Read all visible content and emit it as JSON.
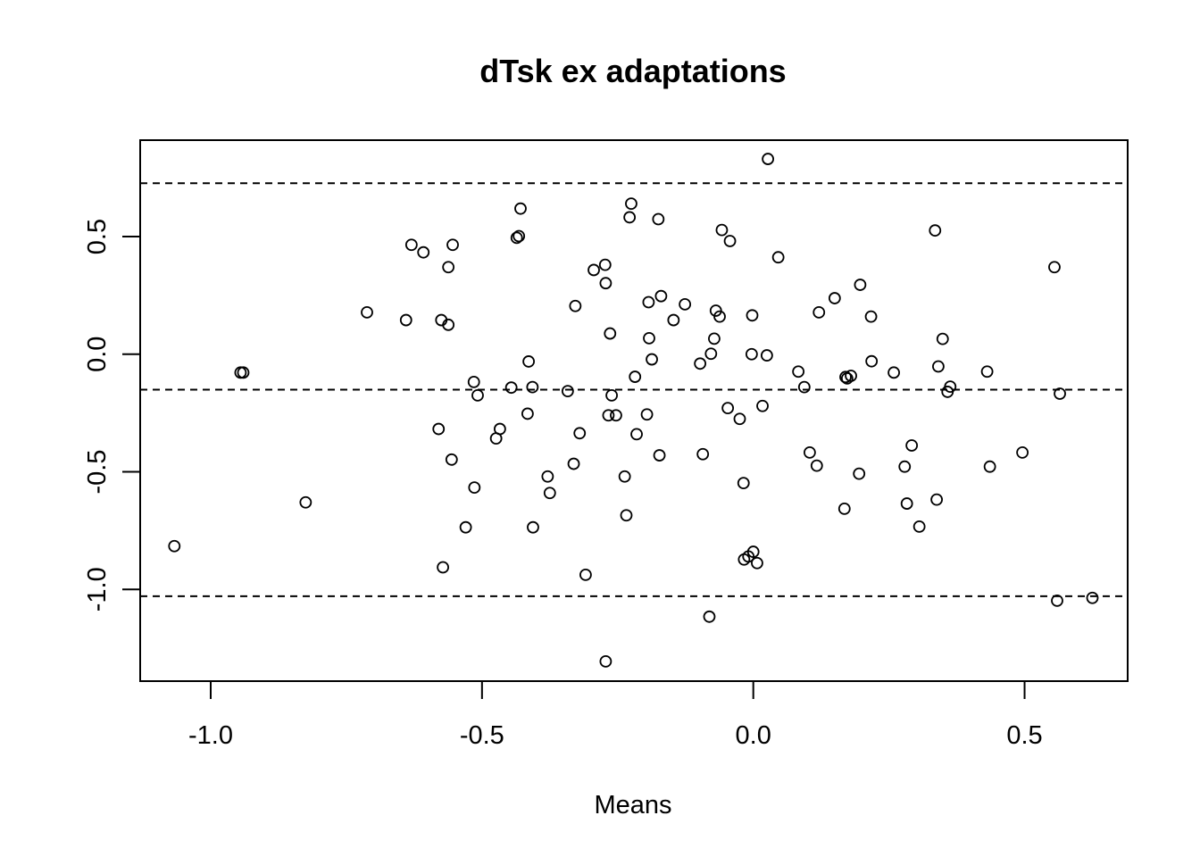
{
  "chart_data": {
    "type": "scatter",
    "title": "dTsk ex adaptations",
    "xlabel": "Means",
    "ylabel": "",
    "xlim": [
      -1.13,
      0.69
    ],
    "ylim": [
      -1.39,
      0.91
    ],
    "x_ticks": [
      -1.0,
      -0.5,
      0.0,
      0.5
    ],
    "x_tick_labels": [
      "-1.0",
      "-0.5",
      "0.0",
      "0.5"
    ],
    "y_ticks": [
      -1.0,
      -0.5,
      0.0,
      0.5
    ],
    "y_tick_labels": [
      "-1.0",
      "-0.5",
      "0.0",
      "0.5"
    ],
    "grid": false,
    "reference_lines": [
      {
        "y": 0.727,
        "style": "dashed"
      },
      {
        "y": -0.151,
        "style": "dashed"
      },
      {
        "y": -1.029,
        "style": "dashed"
      }
    ],
    "points": [
      [
        -1.067,
        -0.816
      ],
      [
        -0.945,
        -0.078
      ],
      [
        -0.94,
        -0.078
      ],
      [
        -0.825,
        -0.63
      ],
      [
        -0.712,
        0.178
      ],
      [
        -0.64,
        0.145
      ],
      [
        -0.63,
        0.465
      ],
      [
        -0.608,
        0.433
      ],
      [
        -0.58,
        -0.318
      ],
      [
        -0.575,
        0.145
      ],
      [
        -0.572,
        -0.906
      ],
      [
        -0.562,
        0.37
      ],
      [
        -0.562,
        0.125
      ],
      [
        -0.556,
        -0.448
      ],
      [
        -0.554,
        0.465
      ],
      [
        -0.53,
        -0.736
      ],
      [
        -0.515,
        -0.118
      ],
      [
        -0.514,
        -0.567
      ],
      [
        -0.508,
        -0.175
      ],
      [
        -0.474,
        -0.358
      ],
      [
        -0.467,
        -0.318
      ],
      [
        -0.446,
        -0.142
      ],
      [
        -0.436,
        0.495
      ],
      [
        -0.432,
        0.502
      ],
      [
        -0.429,
        0.619
      ],
      [
        -0.416,
        -0.253
      ],
      [
        -0.414,
        -0.031
      ],
      [
        -0.407,
        -0.14
      ],
      [
        -0.406,
        -0.736
      ],
      [
        -0.379,
        -0.52
      ],
      [
        -0.375,
        -0.59
      ],
      [
        -0.342,
        -0.157
      ],
      [
        -0.331,
        -0.466
      ],
      [
        -0.328,
        0.205
      ],
      [
        -0.32,
        -0.336
      ],
      [
        -0.309,
        -0.938
      ],
      [
        -0.294,
        0.358
      ],
      [
        -0.273,
        0.38
      ],
      [
        -0.272,
        0.302
      ],
      [
        -0.272,
        -1.306
      ],
      [
        -0.267,
        -0.26
      ],
      [
        -0.264,
        0.088
      ],
      [
        -0.261,
        -0.175
      ],
      [
        -0.253,
        -0.26
      ],
      [
        -0.237,
        -0.52
      ],
      [
        -0.234,
        -0.685
      ],
      [
        -0.228,
        0.582
      ],
      [
        -0.225,
        0.64
      ],
      [
        -0.218,
        -0.096
      ],
      [
        -0.215,
        -0.34
      ],
      [
        -0.196,
        -0.256
      ],
      [
        -0.193,
        0.221
      ],
      [
        -0.192,
        0.068
      ],
      [
        -0.187,
        -0.022
      ],
      [
        -0.175,
        0.574
      ],
      [
        -0.173,
        -0.43
      ],
      [
        -0.17,
        0.247
      ],
      [
        -0.147,
        0.145
      ],
      [
        -0.126,
        0.212
      ],
      [
        -0.098,
        -0.04
      ],
      [
        -0.093,
        -0.425
      ],
      [
        -0.081,
        -1.116
      ],
      [
        -0.078,
        0.002
      ],
      [
        -0.072,
        0.066
      ],
      [
        -0.069,
        0.185
      ],
      [
        -0.062,
        0.16
      ],
      [
        -0.058,
        0.528
      ],
      [
        -0.047,
        -0.229
      ],
      [
        -0.043,
        0.481
      ],
      [
        -0.025,
        -0.275
      ],
      [
        -0.018,
        -0.548
      ],
      [
        -0.017,
        -0.873
      ],
      [
        -0.009,
        -0.86
      ],
      [
        -0.003,
        0.0
      ],
      [
        -0.002,
        0.165
      ],
      [
        0.0,
        -0.84
      ],
      [
        0.007,
        -0.888
      ],
      [
        0.017,
        -0.22
      ],
      [
        0.025,
        -0.005
      ],
      [
        0.027,
        0.83
      ],
      [
        0.046,
        0.412
      ],
      [
        0.083,
        -0.074
      ],
      [
        0.094,
        -0.14
      ],
      [
        0.104,
        -0.418
      ],
      [
        0.117,
        -0.474
      ],
      [
        0.121,
        0.178
      ],
      [
        0.15,
        0.238
      ],
      [
        0.168,
        -0.657
      ],
      [
        0.17,
        -0.097
      ],
      [
        0.173,
        -0.103
      ],
      [
        0.18,
        -0.092
      ],
      [
        0.195,
        -0.508
      ],
      [
        0.197,
        0.295
      ],
      [
        0.217,
        0.16
      ],
      [
        0.218,
        -0.03
      ],
      [
        0.259,
        -0.078
      ],
      [
        0.279,
        -0.478
      ],
      [
        0.283,
        -0.635
      ],
      [
        0.292,
        -0.388
      ],
      [
        0.306,
        -0.733
      ],
      [
        0.335,
        0.526
      ],
      [
        0.338,
        -0.618
      ],
      [
        0.341,
        -0.052
      ],
      [
        0.349,
        0.065
      ],
      [
        0.358,
        -0.16
      ],
      [
        0.363,
        -0.138
      ],
      [
        0.431,
        -0.074
      ],
      [
        0.436,
        -0.478
      ],
      [
        0.496,
        -0.418
      ],
      [
        0.555,
        0.37
      ],
      [
        0.56,
        -1.048
      ],
      [
        0.565,
        -0.168
      ],
      [
        0.625,
        -1.036
      ]
    ]
  }
}
